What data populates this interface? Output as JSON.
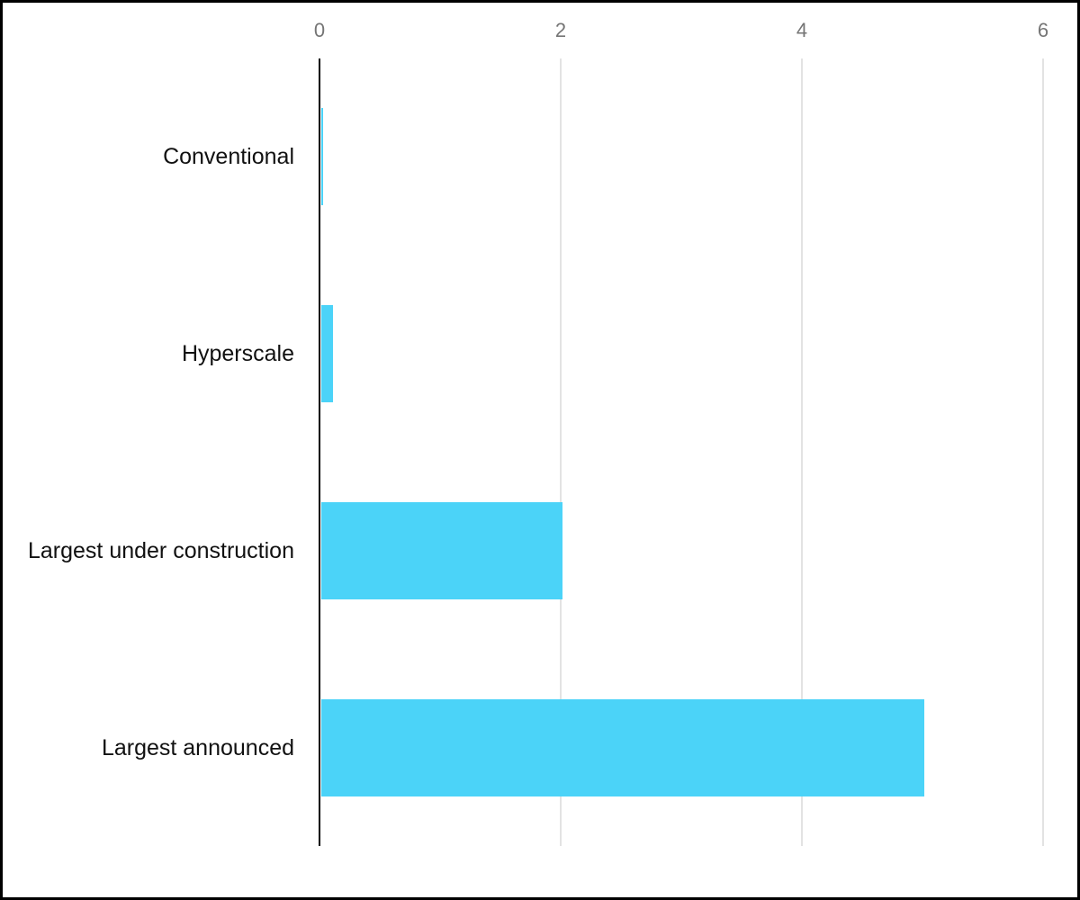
{
  "chart_data": {
    "type": "bar",
    "orientation": "horizontal",
    "title": "",
    "xlabel": "",
    "ylabel": "",
    "categories": [
      "Conventional",
      "Hyperscale",
      "Largest under construction",
      "Largest announced"
    ],
    "values": [
      0.02,
      0.1,
      2,
      5
    ],
    "x_ticks": [
      0,
      2,
      4,
      6
    ],
    "xlim": [
      0,
      6
    ],
    "grid": true,
    "legend": false,
    "tick_position": "top",
    "colors": {
      "bar": "#4bd3f8",
      "axis_line": "#000000",
      "gridline": "#e3e3e3",
      "tick_label": "#757575",
      "category_label": "#111111",
      "background": "#ffffff",
      "frame_border": "#000000"
    }
  }
}
